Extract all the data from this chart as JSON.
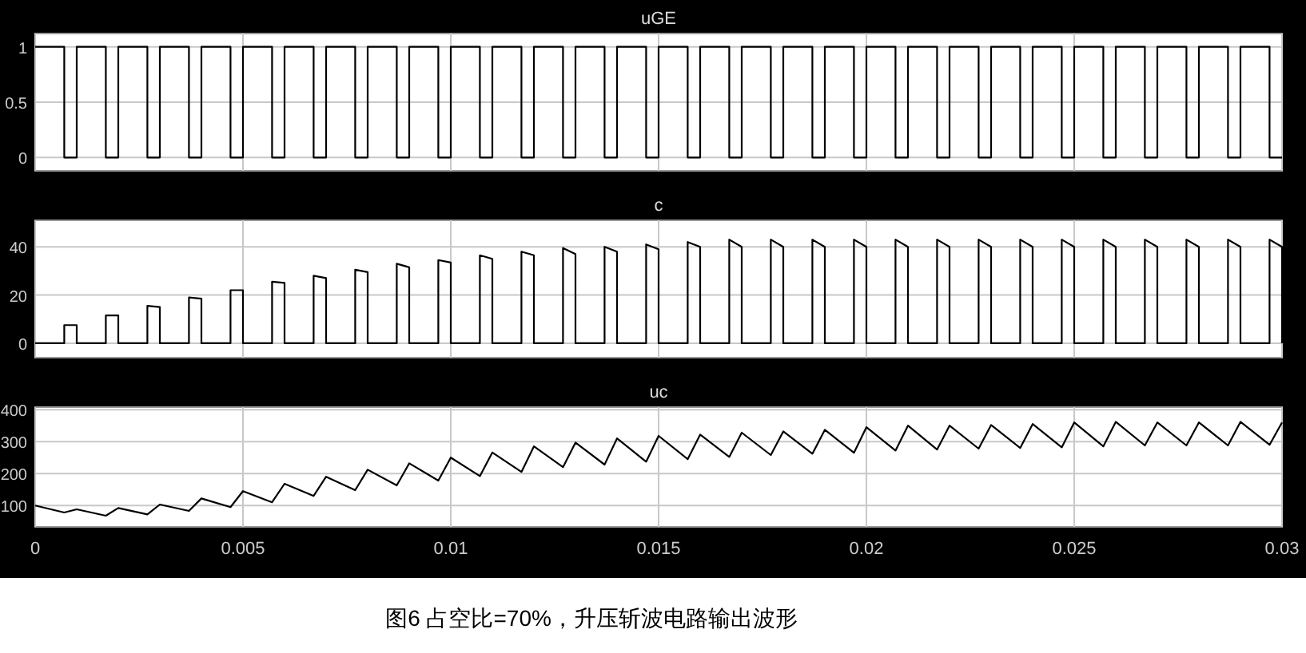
{
  "chart_data": [
    {
      "type": "line",
      "title": "uGE",
      "color": "#000000",
      "grid": true,
      "tick_labels": "y",
      "xlim": [
        0,
        0.03
      ],
      "xticks": [
        0,
        0.005,
        0.01,
        0.015,
        0.02,
        0.025,
        0.03
      ],
      "ylim": [
        -0.12,
        1.12
      ],
      "yticks": [
        0,
        0.5,
        1
      ],
      "x": [
        0,
        0.0007,
        0.0007,
        0.001,
        0.001,
        0.0017,
        0.0017,
        0.002,
        0.002,
        0.0027,
        0.0027,
        0.003,
        0.003,
        0.0037,
        0.0037,
        0.004,
        0.004,
        0.0047,
        0.0047,
        0.005,
        0.005,
        0.0057,
        0.0057,
        0.006,
        0.006,
        0.0067,
        0.0067,
        0.007,
        0.007,
        0.0077,
        0.0077,
        0.008,
        0.008,
        0.0087,
        0.0087,
        0.009,
        0.009,
        0.0097,
        0.0097,
        0.01,
        0.01,
        0.0107,
        0.0107,
        0.011,
        0.011,
        0.0117,
        0.0117,
        0.012,
        0.012,
        0.0127,
        0.0127,
        0.013,
        0.013,
        0.0137,
        0.0137,
        0.014,
        0.014,
        0.0147,
        0.0147,
        0.015,
        0.015,
        0.0157,
        0.0157,
        0.016,
        0.016,
        0.0167,
        0.0167,
        0.017,
        0.017,
        0.0177,
        0.0177,
        0.018,
        0.018,
        0.0187,
        0.0187,
        0.019,
        0.019,
        0.0197,
        0.0197,
        0.02,
        0.02,
        0.0207,
        0.0207,
        0.021,
        0.021,
        0.0217,
        0.0217,
        0.022,
        0.022,
        0.0227,
        0.0227,
        0.023,
        0.023,
        0.0237,
        0.0237,
        0.024,
        0.024,
        0.0247,
        0.0247,
        0.025,
        0.025,
        0.0257,
        0.0257,
        0.026,
        0.026,
        0.0267,
        0.0267,
        0.027,
        0.027,
        0.0277,
        0.0277,
        0.028,
        0.028,
        0.0287,
        0.0287,
        0.029,
        0.029,
        0.0297,
        0.0297,
        0.03
      ],
      "values": [
        1,
        1,
        0,
        0,
        1,
        1,
        0,
        0,
        1,
        1,
        0,
        0,
        1,
        1,
        0,
        0,
        1,
        1,
        0,
        0,
        1,
        1,
        0,
        0,
        1,
        1,
        0,
        0,
        1,
        1,
        0,
        0,
        1,
        1,
        0,
        0,
        1,
        1,
        0,
        0,
        1,
        1,
        0,
        0,
        1,
        1,
        0,
        0,
        1,
        1,
        0,
        0,
        1,
        1,
        0,
        0,
        1,
        1,
        0,
        0,
        1,
        1,
        0,
        0,
        1,
        1,
        0,
        0,
        1,
        1,
        0,
        0,
        1,
        1,
        0,
        0,
        1,
        1,
        0,
        0,
        1,
        1,
        0,
        0,
        1,
        1,
        0,
        0,
        1,
        1,
        0,
        0,
        1,
        1,
        0,
        0,
        1,
        1,
        0,
        0,
        1,
        1,
        0,
        0,
        1,
        1,
        0,
        0,
        1,
        1,
        0,
        0,
        1,
        1,
        0,
        0,
        1,
        1,
        0,
        0
      ]
    },
    {
      "type": "line",
      "title": "c",
      "color": "#000000",
      "grid": true,
      "tick_labels": "y",
      "xlim": [
        0,
        0.03
      ],
      "xticks": [
        0,
        0.005,
        0.01,
        0.015,
        0.02,
        0.025,
        0.03
      ],
      "ylim": [
        -6,
        51
      ],
      "yticks": [
        0,
        20,
        40
      ],
      "x": [
        0,
        0.0007,
        0.0007,
        0.001,
        0.001,
        0.0017,
        0.0017,
        0.002,
        0.002,
        0.0027,
        0.0027,
        0.003,
        0.003,
        0.0037,
        0.0037,
        0.004,
        0.004,
        0.0047,
        0.0047,
        0.005,
        0.005,
        0.0057,
        0.0057,
        0.006,
        0.006,
        0.0067,
        0.0067,
        0.007,
        0.007,
        0.0077,
        0.0077,
        0.008,
        0.008,
        0.0087,
        0.0087,
        0.009,
        0.009,
        0.0097,
        0.0097,
        0.01,
        0.01,
        0.0107,
        0.0107,
        0.011,
        0.011,
        0.0117,
        0.0117,
        0.012,
        0.012,
        0.0127,
        0.0127,
        0.013,
        0.013,
        0.0137,
        0.0137,
        0.014,
        0.014,
        0.0147,
        0.0147,
        0.015,
        0.015,
        0.0157,
        0.0157,
        0.016,
        0.016,
        0.0167,
        0.0167,
        0.017,
        0.017,
        0.0177,
        0.0177,
        0.018,
        0.018,
        0.0187,
        0.0187,
        0.019,
        0.019,
        0.0197,
        0.0197,
        0.02,
        0.02,
        0.0207,
        0.0207,
        0.021,
        0.021,
        0.0217,
        0.0217,
        0.022,
        0.022,
        0.0227,
        0.0227,
        0.023,
        0.023,
        0.0237,
        0.0237,
        0.024,
        0.024,
        0.0247,
        0.0247,
        0.025,
        0.025,
        0.0257,
        0.0257,
        0.026,
        0.026,
        0.0267,
        0.0267,
        0.027,
        0.027,
        0.0277,
        0.0277,
        0.028,
        0.028,
        0.0287,
        0.0287,
        0.029,
        0.029,
        0.0297,
        0.0297,
        0.03,
        0.03
      ],
      "values": [
        0,
        0,
        7.5,
        7.5,
        0,
        0,
        11.5,
        11.5,
        0,
        0,
        15.5,
        15,
        0,
        0,
        19,
        18.5,
        0,
        0,
        22,
        22,
        0,
        0,
        25.5,
        25,
        0,
        0,
        28,
        27,
        0,
        0,
        30.5,
        29.5,
        0,
        0,
        33,
        31.5,
        0,
        0,
        34.5,
        33.5,
        0,
        0,
        36.5,
        35,
        0,
        0,
        38,
        36.5,
        0,
        0,
        39.5,
        37,
        0,
        0,
        40,
        38,
        0,
        0,
        41,
        39,
        0,
        0,
        42,
        40,
        0,
        0,
        43,
        40,
        0,
        0,
        43,
        40,
        0,
        0,
        43,
        40,
        0,
        0,
        43,
        40,
        0,
        0,
        43,
        40,
        0,
        0,
        43,
        40,
        0,
        0,
        43,
        40,
        0,
        0,
        43,
        40,
        0,
        0,
        43,
        40,
        0,
        0,
        43,
        40,
        0,
        0,
        43,
        40,
        0,
        0,
        43,
        40,
        0,
        0,
        43,
        40,
        0,
        0,
        43,
        40,
        0
      ]
    },
    {
      "type": "line",
      "title": "uc",
      "color": "#000000",
      "grid": true,
      "xlim": [
        0,
        0.03
      ],
      "xticks": [
        0,
        0.005,
        0.01,
        0.015,
        0.02,
        0.025,
        0.03
      ],
      "ylim": [
        33,
        408
      ],
      "yticks": [
        100,
        200,
        300,
        400
      ],
      "annotations": [
        "图6 占空比=70%，升压斩波电路输出波形"
      ],
      "x": [
        0,
        0.0007,
        0.001,
        0.0017,
        0.002,
        0.0027,
        0.003,
        0.0037,
        0.004,
        0.0047,
        0.005,
        0.0057,
        0.006,
        0.0067,
        0.007,
        0.0077,
        0.008,
        0.0087,
        0.009,
        0.0097,
        0.01,
        0.0107,
        0.011,
        0.0117,
        0.012,
        0.0127,
        0.013,
        0.0137,
        0.014,
        0.0147,
        0.015,
        0.0157,
        0.016,
        0.0167,
        0.017,
        0.0177,
        0.018,
        0.0187,
        0.019,
        0.0197,
        0.02,
        0.0207,
        0.021,
        0.0217,
        0.022,
        0.0227,
        0.023,
        0.0237,
        0.024,
        0.0247,
        0.025,
        0.0257,
        0.026,
        0.0267,
        0.027,
        0.0277,
        0.028,
        0.0287,
        0.029,
        0.0297,
        0.03
      ],
      "values": [
        100,
        78,
        88,
        68,
        92,
        72,
        103,
        83,
        122,
        95,
        145,
        110,
        168,
        130,
        190,
        148,
        212,
        163,
        232,
        178,
        250,
        192,
        266,
        205,
        285,
        220,
        297,
        228,
        310,
        237,
        318,
        245,
        322,
        252,
        328,
        258,
        332,
        262,
        337,
        265,
        345,
        272,
        350,
        275,
        350,
        278,
        352,
        280,
        355,
        282,
        360,
        285,
        362,
        288,
        360,
        288,
        360,
        288,
        362,
        290,
        360
      ]
    }
  ]
}
